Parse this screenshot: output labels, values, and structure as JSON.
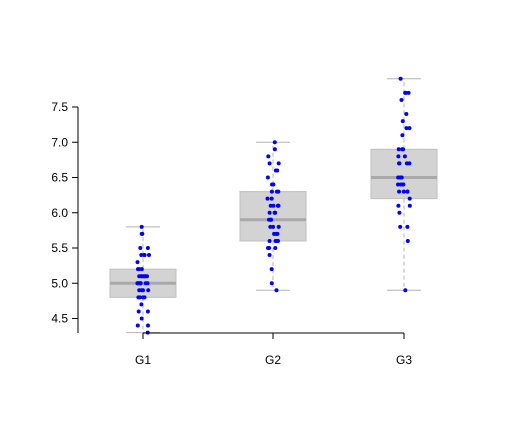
{
  "chart_data": {
    "type": "boxplot",
    "categories": [
      "G1",
      "G2",
      "G3"
    ],
    "ylim": [
      4.3,
      7.95
    ],
    "yticks": [
      4.5,
      5.0,
      5.5,
      6.0,
      6.5,
      7.0,
      7.5
    ],
    "ytick_labels": [
      "4.5",
      "5.0",
      "5.5",
      "6.0",
      "6.5",
      "7.0",
      "7.5"
    ],
    "boxes": [
      {
        "category": "G1",
        "whisker_low": 4.3,
        "q1": 4.8,
        "median": 5.0,
        "q3": 5.2,
        "whisker_high": 5.8
      },
      {
        "category": "G2",
        "whisker_low": 4.9,
        "q1": 5.6,
        "median": 5.9,
        "q3": 6.3,
        "whisker_high": 7.0
      },
      {
        "category": "G3",
        "whisker_low": 4.9,
        "q1": 6.2,
        "median": 6.5,
        "q3": 6.9,
        "whisker_high": 7.9
      }
    ],
    "points": {
      "G1": [
        4.3,
        4.4,
        4.4,
        4.5,
        4.6,
        4.6,
        4.7,
        4.8,
        4.8,
        4.8,
        4.8,
        4.9,
        4.9,
        4.9,
        4.9,
        5.0,
        5.0,
        5.0,
        5.0,
        5.0,
        5.0,
        5.0,
        5.0,
        5.1,
        5.1,
        5.1,
        5.1,
        5.1,
        5.1,
        5.1,
        5.2,
        5.2,
        5.2,
        5.3,
        5.4,
        5.4,
        5.4,
        5.4,
        5.5,
        5.5,
        5.7,
        5.7,
        5.8
      ],
      "G2": [
        4.9,
        5.0,
        5.2,
        5.4,
        5.5,
        5.5,
        5.5,
        5.6,
        5.6,
        5.6,
        5.6,
        5.7,
        5.7,
        5.7,
        5.7,
        5.8,
        5.8,
        5.8,
        5.9,
        5.9,
        5.9,
        6.0,
        6.0,
        6.0,
        6.1,
        6.1,
        6.1,
        6.1,
        6.2,
        6.2,
        6.3,
        6.3,
        6.3,
        6.4,
        6.4,
        6.5,
        6.6,
        6.6,
        6.7,
        6.7,
        6.8,
        6.9,
        7.0
      ],
      "G3": [
        4.9,
        5.6,
        5.8,
        5.8,
        6.0,
        6.1,
        6.1,
        6.2,
        6.3,
        6.3,
        6.3,
        6.3,
        6.4,
        6.4,
        6.4,
        6.4,
        6.5,
        6.5,
        6.5,
        6.5,
        6.7,
        6.7,
        6.7,
        6.7,
        6.8,
        6.8,
        6.9,
        6.9,
        6.9,
        7.1,
        7.2,
        7.2,
        7.3,
        7.4,
        7.6,
        7.7,
        7.7,
        7.7,
        7.9
      ]
    },
    "colors": {
      "box_fill": "#d3d3d3",
      "box_border": "#bfbfbf",
      "median": "#a9a9a9",
      "whisker": "#b4b4b4",
      "points": "#0000ff",
      "axis": "#000000"
    },
    "grid": false
  }
}
